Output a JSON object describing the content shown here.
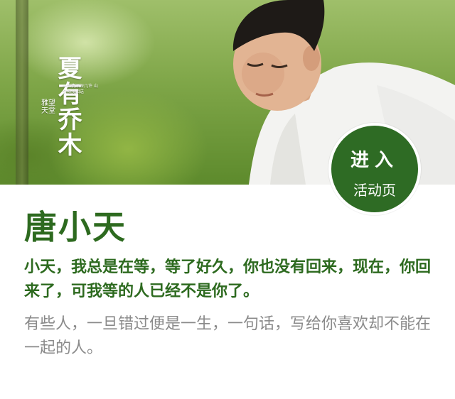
{
  "poster": {
    "title": "夏有乔木",
    "tagline": "一世情深深几许 山夕阳浅相送",
    "brand": "雅望天堂"
  },
  "badge": {
    "line1": "进入",
    "line2": "活动页"
  },
  "profile": {
    "name": "唐小天",
    "quote": "小天，我总是在等，等了好久，你也没有回来，现在，你回来了，可我等的人已经不是你了。",
    "description": "有些人，一旦错过便是一生，一句话，写给你喜欢却不能在一起的人。"
  },
  "colors": {
    "accent": "#2d6a1f",
    "badge": "#2e6b24",
    "muted": "#8a8a8a"
  }
}
